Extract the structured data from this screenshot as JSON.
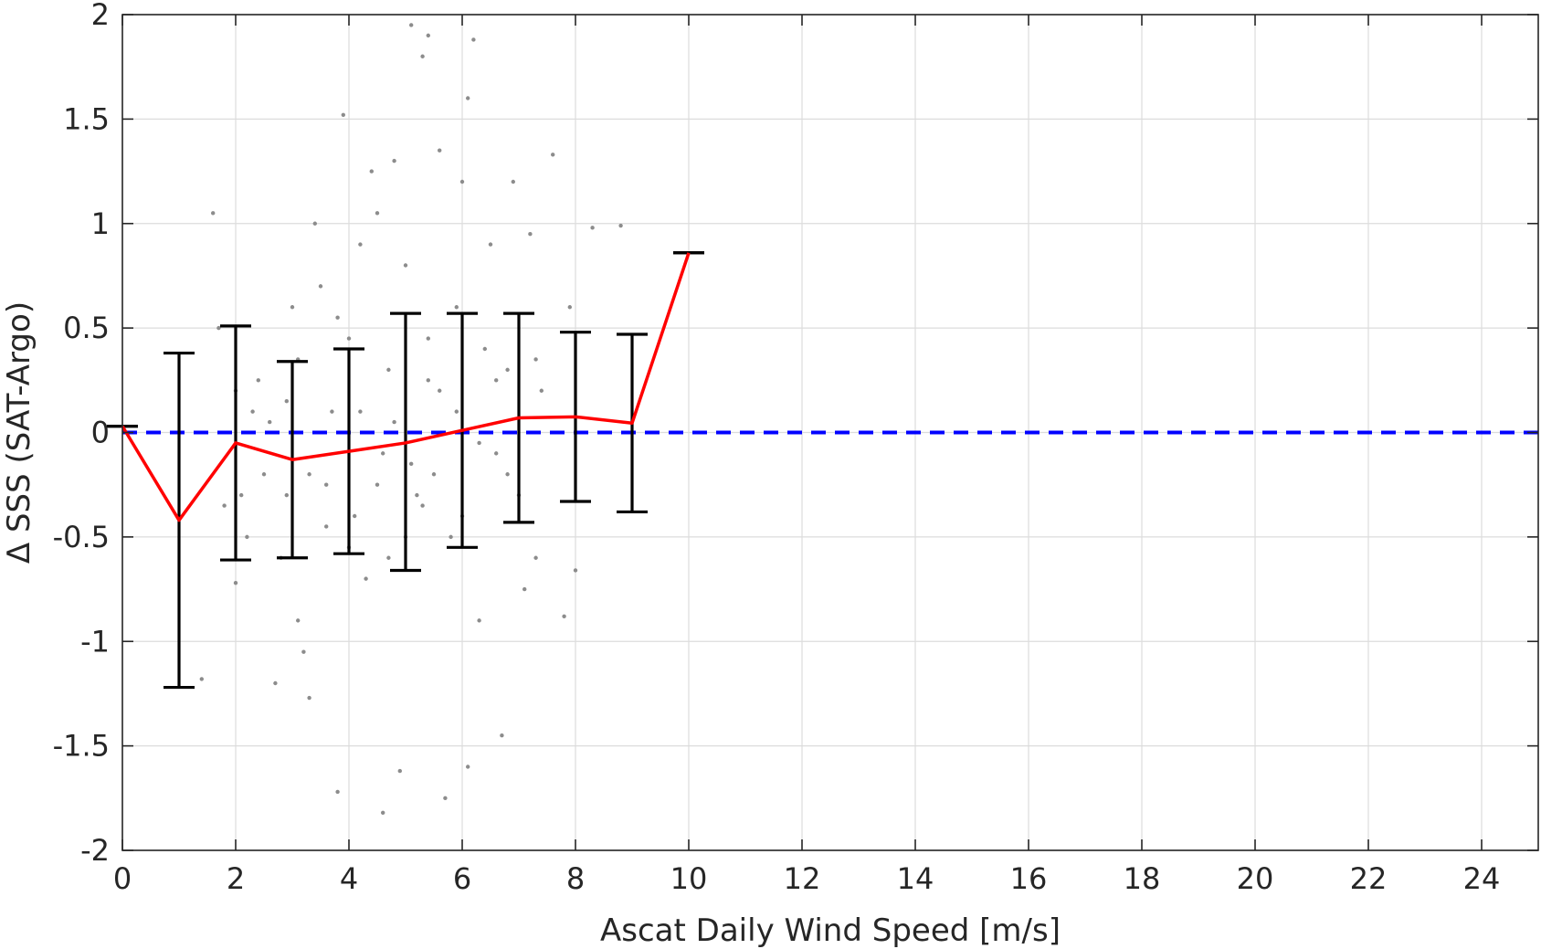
{
  "chart_data": {
    "type": "scatter",
    "xlabel": "Ascat Daily Wind Speed [m/s]",
    "ylabel": "Δ SSS (SAT-Argo)",
    "xlim": [
      0,
      25
    ],
    "ylim": [
      -2,
      2
    ],
    "xticks": [
      "0",
      "2",
      "4",
      "6",
      "8",
      "10",
      "12",
      "14",
      "16",
      "18",
      "20",
      "22",
      "24"
    ],
    "yticks": [
      "2",
      "1.5",
      "1",
      "0.5",
      "0",
      "-0.5",
      "-1",
      "-1.5",
      "-2"
    ],
    "grid": true,
    "colors": {
      "scatter": "#8c8c8c",
      "mean_line": "#ff0000",
      "error_bars": "#000000",
      "zero_line": "#0000ff"
    },
    "reference_line": {
      "y": 0,
      "style": "dashed",
      "color": "#0000ff"
    },
    "mean_line": {
      "x": [
        0,
        1,
        2,
        3,
        4,
        5,
        6,
        7,
        8,
        9,
        10
      ],
      "y": [
        0.03,
        -0.42,
        -0.05,
        -0.13,
        -0.09,
        -0.05,
        0.01,
        0.07,
        0.075,
        0.045,
        0.86
      ]
    },
    "error_bars": [
      {
        "x": 0,
        "mean": 0.03,
        "lower": 0.03,
        "upper": 0.03
      },
      {
        "x": 1,
        "mean": -0.42,
        "lower": -1.22,
        "upper": 0.38
      },
      {
        "x": 2,
        "mean": -0.05,
        "lower": -0.61,
        "upper": 0.51
      },
      {
        "x": 3,
        "mean": -0.13,
        "lower": -0.6,
        "upper": 0.34
      },
      {
        "x": 4,
        "mean": -0.09,
        "lower": -0.58,
        "upper": 0.4
      },
      {
        "x": 5,
        "mean": -0.05,
        "lower": -0.66,
        "upper": 0.57
      },
      {
        "x": 6,
        "mean": 0.01,
        "lower": -0.55,
        "upper": 0.57
      },
      {
        "x": 7,
        "mean": 0.07,
        "lower": -0.43,
        "upper": 0.57
      },
      {
        "x": 8,
        "mean": 0.075,
        "lower": -0.33,
        "upper": 0.48
      },
      {
        "x": 9,
        "mean": 0.045,
        "lower": -0.38,
        "upper": 0.47
      },
      {
        "x": 10,
        "mean": 0.86,
        "lower": 0.86,
        "upper": 0.86
      }
    ],
    "scatter_points": [
      [
        1.6,
        1.05
      ],
      [
        1.4,
        -1.18
      ],
      [
        1.8,
        -0.35
      ],
      [
        1.7,
        0.5
      ],
      [
        2.0,
        0.2
      ],
      [
        2.1,
        -0.3
      ],
      [
        2.2,
        -0.5
      ],
      [
        2.3,
        0.1
      ],
      [
        2.0,
        -0.72
      ],
      [
        2.4,
        0.25
      ],
      [
        2.6,
        0.05
      ],
      [
        2.5,
        -0.2
      ],
      [
        2.7,
        -1.2
      ],
      [
        2.8,
        -0.6
      ],
      [
        2.9,
        0.15
      ],
      [
        3.0,
        0.6
      ],
      [
        3.1,
        -0.9
      ],
      [
        3.2,
        -1.05
      ],
      [
        3.3,
        -1.27
      ],
      [
        3.4,
        1.0
      ],
      [
        3.5,
        0.7
      ],
      [
        3.6,
        -0.25
      ],
      [
        3.7,
        0.1
      ],
      [
        3.8,
        -1.72
      ],
      [
        3.9,
        1.52
      ],
      [
        4.0,
        0.45
      ],
      [
        4.1,
        -0.4
      ],
      [
        4.2,
        0.9
      ],
      [
        4.3,
        -0.7
      ],
      [
        4.4,
        1.25
      ],
      [
        4.5,
        1.05
      ],
      [
        4.6,
        -0.1
      ],
      [
        4.7,
        -0.6
      ],
      [
        4.8,
        1.3
      ],
      [
        4.9,
        -1.62
      ],
      [
        5.0,
        0.8
      ],
      [
        5.1,
        1.95
      ],
      [
        5.2,
        -0.3
      ],
      [
        5.3,
        1.8
      ],
      [
        5.4,
        0.25
      ],
      [
        5.5,
        -0.2
      ],
      [
        5.6,
        1.35
      ],
      [
        5.7,
        -1.75
      ],
      [
        5.8,
        -0.5
      ],
      [
        5.9,
        0.6
      ],
      [
        6.0,
        1.2
      ],
      [
        6.1,
        -1.6
      ],
      [
        6.2,
        1.88
      ],
      [
        6.3,
        -0.9
      ],
      [
        6.4,
        0.4
      ],
      [
        6.5,
        0.9
      ],
      [
        6.6,
        -0.1
      ],
      [
        6.7,
        -1.45
      ],
      [
        6.8,
        0.3
      ],
      [
        6.9,
        1.2
      ],
      [
        7.0,
        -0.3
      ],
      [
        7.1,
        -0.75
      ],
      [
        7.2,
        0.95
      ],
      [
        7.3,
        -0.6
      ],
      [
        7.4,
        0.2
      ],
      [
        7.6,
        1.33
      ],
      [
        7.8,
        -0.88
      ],
      [
        7.9,
        0.6
      ],
      [
        8.0,
        -0.66
      ],
      [
        8.3,
        0.98
      ],
      [
        8.8,
        0.99
      ],
      [
        4.6,
        -1.82
      ],
      [
        5.4,
        1.9
      ],
      [
        6.1,
        1.6
      ],
      [
        3.3,
        -0.2
      ],
      [
        4.2,
        0.1
      ],
      [
        4.5,
        -0.25
      ],
      [
        4.8,
        0.05
      ],
      [
        5.1,
        -0.15
      ],
      [
        5.6,
        0.2
      ],
      [
        6.3,
        -0.05
      ],
      [
        5.9,
        0.1
      ],
      [
        5.3,
        -0.35
      ],
      [
        4.7,
        0.3
      ],
      [
        6.6,
        0.25
      ],
      [
        3.6,
        -0.45
      ],
      [
        2.9,
        -0.3
      ],
      [
        3.1,
        0.35
      ],
      [
        3.8,
        0.55
      ],
      [
        4.0,
        -0.55
      ],
      [
        5.0,
        -0.5
      ],
      [
        5.4,
        0.45
      ],
      [
        6.0,
        -0.4
      ],
      [
        6.8,
        -0.2
      ],
      [
        7.3,
        0.35
      ]
    ]
  }
}
